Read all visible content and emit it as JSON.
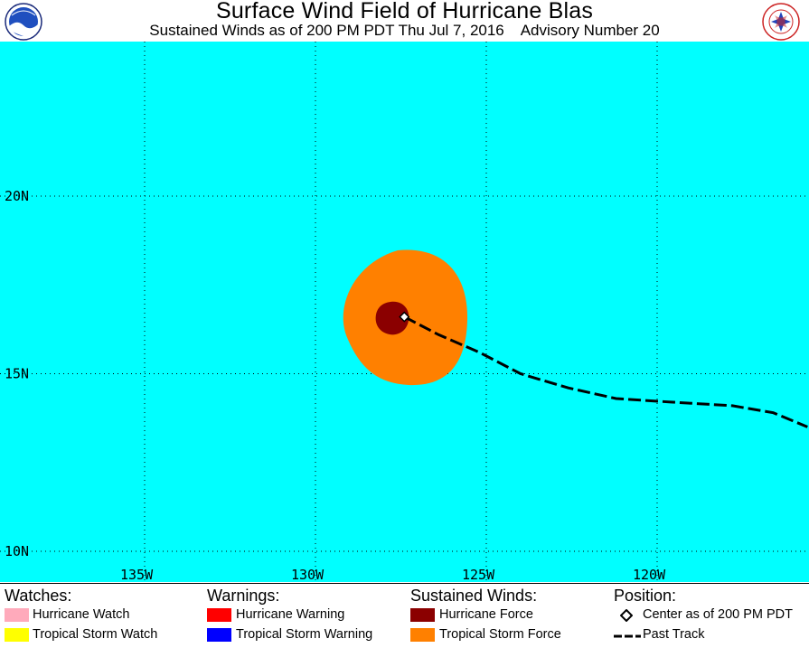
{
  "header": {
    "title": "Surface Wind Field of Hurricane Blas",
    "subtitle": "Sustained Winds as of 200 PM PDT Thu Jul 7, 2016    Advisory Number 20",
    "left_logo_text": "NOAA",
    "right_logo_text": "NATIONAL WEATHER SERVICE"
  },
  "map": {
    "ocean_color": "#00ffff",
    "grid_color": "#000000",
    "lat_labels": [
      "20N",
      "15N",
      "10N"
    ],
    "lon_labels": [
      "135W",
      "130W",
      "125W",
      "120W"
    ]
  },
  "storm": {
    "center": {
      "lon": -127.4,
      "lat": 16.6
    },
    "tropical_storm_force_color": "#ff8000",
    "hurricane_force_color": "#8b0000",
    "past_track": [
      {
        "lon": -127.4,
        "lat": 16.6
      },
      {
        "lon": -126.4,
        "lat": 16.1
      },
      {
        "lon": -125.2,
        "lat": 15.6
      },
      {
        "lon": -124.0,
        "lat": 15.0
      },
      {
        "lon": -122.6,
        "lat": 14.6
      },
      {
        "lon": -121.2,
        "lat": 14.3
      },
      {
        "lon": -119.6,
        "lat": 14.2
      },
      {
        "lon": -117.8,
        "lat": 14.1
      },
      {
        "lon": -116.6,
        "lat": 13.9
      },
      {
        "lon": -115.6,
        "lat": 13.5
      }
    ]
  },
  "legend": {
    "watches": {
      "heading": "Watches:",
      "items": [
        {
          "label": "Hurricane Watch",
          "color": "#ffaabb"
        },
        {
          "label": "Tropical Storm Watch",
          "color": "#ffff00"
        }
      ]
    },
    "warnings": {
      "heading": "Warnings:",
      "items": [
        {
          "label": "Hurricane Warning",
          "color": "#ff0000"
        },
        {
          "label": "Tropical Storm Warning",
          "color": "#0000ff"
        }
      ]
    },
    "winds": {
      "heading": "Sustained Winds:",
      "items": [
        {
          "label": "Hurricane Force",
          "color": "#8b0000"
        },
        {
          "label": "Tropical Storm Force",
          "color": "#ff8000"
        }
      ]
    },
    "position": {
      "heading": "Position:",
      "center_label": "Center as of 200 PM PDT",
      "track_label": "Past Track"
    }
  }
}
